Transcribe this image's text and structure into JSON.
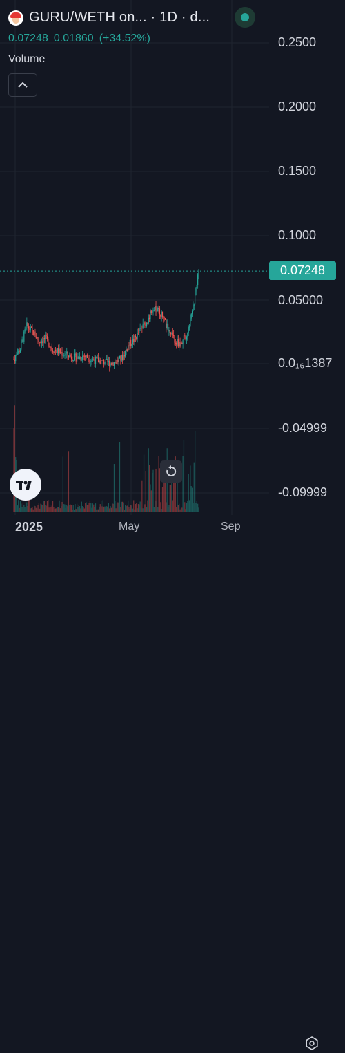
{
  "header": {
    "title": "GURU/WETH on...  · 1D · d...",
    "price_last": "0.07248",
    "price_change": "0.01860",
    "price_change_pct": "(+34.52%)"
  },
  "volume_label": "Volume",
  "icons": {
    "avatar": "token-avatar-icon",
    "live": "live-status-icon",
    "collapse": "chevron-up-icon",
    "logo": "tradingview-logo-icon",
    "reset": "reset-chart-icon",
    "settings": "settings-gear-icon"
  },
  "price_axis": {
    "ticks": [
      "0.2500",
      "0.2000",
      "0.1500",
      "0.1000",
      "0.05000",
      "0.0₁₆1387",
      "-0.04999",
      "-0.09999"
    ],
    "current_price_tag": "0.07248"
  },
  "time_axis": {
    "labels": [
      "2025",
      "May",
      "Sep"
    ]
  },
  "colors": {
    "background": "#131722",
    "up": "#26a69a",
    "down": "#ef5350",
    "grid": "#1f2430"
  },
  "chart_data": {
    "type": "candlestick",
    "symbol": "GURU/WETH",
    "interval": "1D",
    "ylim": [
      -0.115,
      0.27
    ],
    "last_price": 0.07248,
    "change": 0.0186,
    "change_pct": 34.52,
    "price_series_approx": [
      0.004,
      0.012,
      0.03,
      0.025,
      0.018,
      0.02,
      0.012,
      0.01,
      0.008,
      0.006,
      0.005,
      0.007,
      0.004,
      0.003,
      0.002,
      0.001,
      0.002,
      0.005,
      0.015,
      0.02,
      0.028,
      0.035,
      0.045,
      0.04,
      0.03,
      0.02,
      0.015,
      0.022,
      0.04,
      0.07248
    ]
  }
}
